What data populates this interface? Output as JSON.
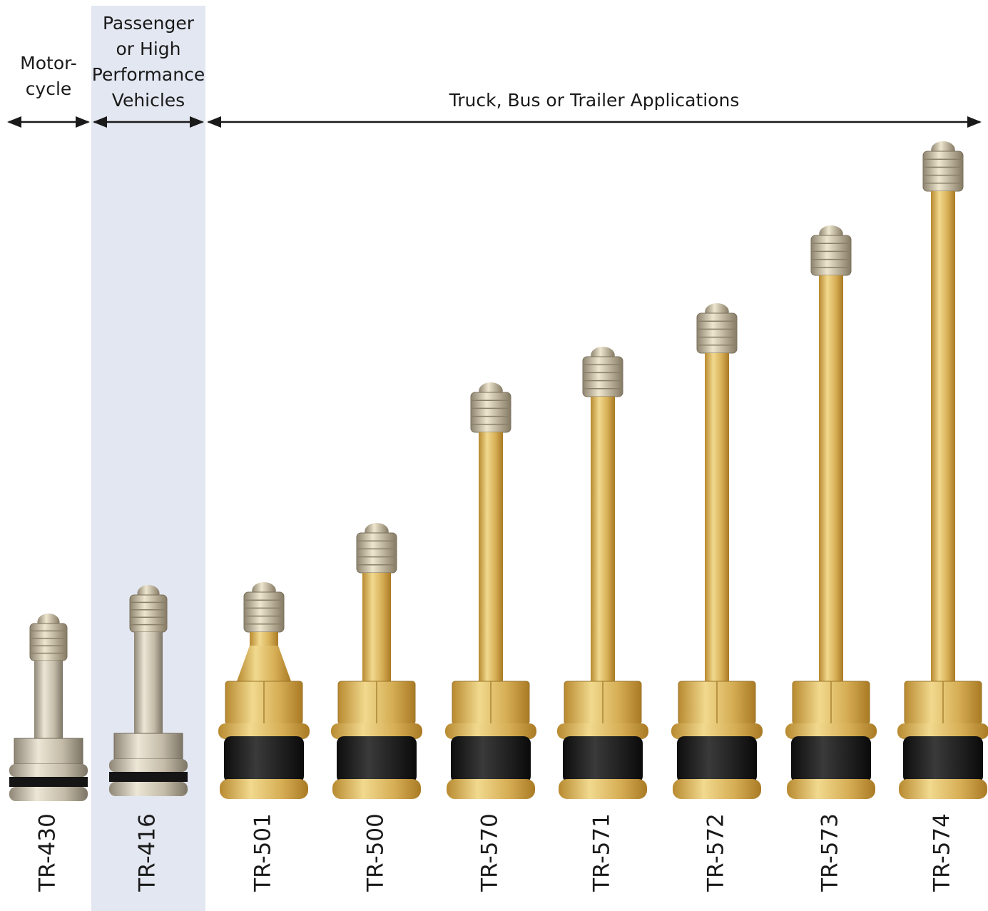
{
  "groups": [
    {
      "lines": [
        "Motor-",
        "cycle"
      ]
    },
    {
      "lines": [
        "Passenger",
        "or High",
        "Performance",
        "Vehicles"
      ]
    },
    {
      "lines": [
        "Truck, Bus or Trailer Applications"
      ]
    }
  ],
  "products": [
    "TR-430",
    "TR-416",
    "TR-501",
    "TR-500",
    "TR-570",
    "TR-571",
    "TR-572",
    "TR-573",
    "TR-574"
  ]
}
